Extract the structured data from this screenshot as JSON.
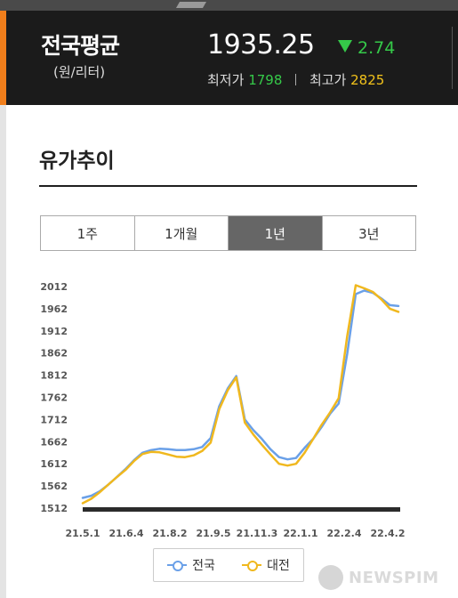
{
  "header": {
    "title": "전국평균",
    "unit": "(원/리터)",
    "price": "1935.25",
    "change": "2.74",
    "min_label": "최저가",
    "min_value": "1798",
    "max_label": "최고가",
    "max_value": "2825"
  },
  "section": {
    "title": "유가추이"
  },
  "tabs": [
    {
      "label": "1주",
      "active": false
    },
    {
      "label": "1개월",
      "active": false
    },
    {
      "label": "1년",
      "active": true
    },
    {
      "label": "3년",
      "active": false
    }
  ],
  "colors": {
    "national": "#6aa0e8",
    "daejeon": "#f0b81e",
    "accent": "#f07e1b",
    "up_down_green": "#35c949"
  },
  "chart_data": {
    "type": "line",
    "xlabel": "",
    "ylabel": "",
    "yticks": [
      2012,
      1962,
      1912,
      1862,
      1812,
      1762,
      1712,
      1662,
      1612,
      1562,
      1512
    ],
    "ylim": [
      1512,
      2012
    ],
    "xticks": [
      "21.5.1",
      "21.6.4",
      "21.8.2",
      "21.9.5",
      "21.11.3",
      "22.1.1",
      "22.2.4",
      "22.4.2"
    ],
    "legend_position": "bottom",
    "grid": false,
    "series": [
      {
        "name": "전국",
        "color": "#6aa0e8",
        "values": [
          1535,
          1540,
          1550,
          1565,
          1582,
          1600,
          1620,
          1637,
          1643,
          1646,
          1645,
          1643,
          1643,
          1645,
          1650,
          1670,
          1742,
          1782,
          1810,
          1712,
          1688,
          1668,
          1645,
          1627,
          1622,
          1625,
          1648,
          1668,
          1695,
          1725,
          1748,
          1860,
          1995,
          2003,
          1998,
          1985,
          1970,
          1968
        ]
      },
      {
        "name": "대전",
        "color": "#f0b81e",
        "values": [
          1523,
          1533,
          1548,
          1565,
          1582,
          1598,
          1618,
          1634,
          1639,
          1638,
          1633,
          1628,
          1627,
          1631,
          1641,
          1660,
          1735,
          1778,
          1807,
          1705,
          1678,
          1655,
          1633,
          1612,
          1608,
          1612,
          1637,
          1668,
          1700,
          1728,
          1760,
          1900,
          2015,
          2008,
          2000,
          1983,
          1962,
          1955
        ]
      }
    ]
  },
  "watermark": {
    "text": "NEWSPIM"
  }
}
